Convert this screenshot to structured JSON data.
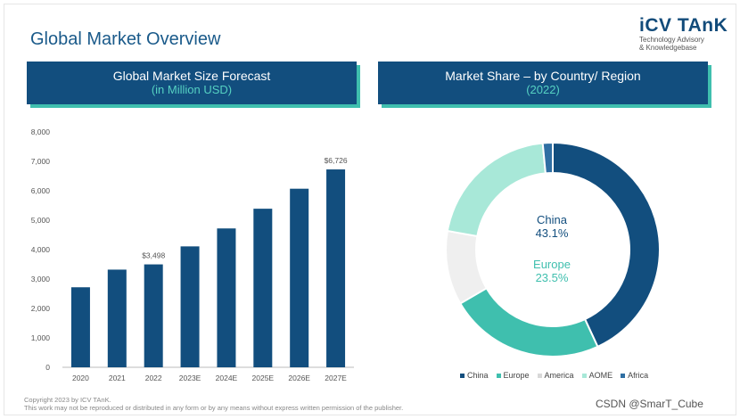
{
  "page": {
    "title": "Global Market Overview",
    "logo": {
      "word": "iCV TAnK",
      "line1": "Technology Advisory",
      "line2": "& Knowledgebase"
    },
    "footer": {
      "copyright": "Copyright 2023 by ICV TAnK.",
      "notice": "This work may not be reproduced or distributed in any form or by any means without express written permission of the publisher."
    },
    "watermark": "CSDN @SmarT_Cube"
  },
  "headers": {
    "left": {
      "line1": "Global Market Size Forecast",
      "line2": "(in Million USD)"
    },
    "right": {
      "line1": "Market Share – by Country/ Region",
      "line2": "(2022)"
    }
  },
  "chart_data": [
    {
      "type": "bar",
      "title": "Global Market Size Forecast (in Million USD)",
      "categories": [
        "2020",
        "2021",
        "2022",
        "2023E",
        "2024E",
        "2025E",
        "2026E",
        "2027E"
      ],
      "values": [
        2720,
        3320,
        3498,
        4110,
        4720,
        5390,
        6070,
        6726
      ],
      "data_labels": {
        "2022": "$3,498",
        "2027E": "$6,726"
      },
      "ylim": [
        0,
        8000
      ],
      "yticks": [
        "0",
        "1,000",
        "2,000",
        "3,000",
        "4,000",
        "5,000",
        "6,000",
        "7,000",
        "8,000"
      ],
      "xlabel": "",
      "ylabel": "",
      "color": "#124e7e"
    },
    {
      "type": "pie",
      "variant": "donut",
      "title": "Market Share – by Country/ Region (2022)",
      "labels": [
        "China",
        "Europe",
        "America",
        "AOME",
        "Africa"
      ],
      "values": [
        43.1,
        23.5,
        11.2,
        20.7,
        1.5
      ],
      "center_labels": [
        {
          "name": "China",
          "value": "43.1%"
        },
        {
          "name": "Europe",
          "value": "23.5%"
        }
      ],
      "colors": [
        "#124e7e",
        "#3fbfae",
        "#efefef",
        "#a8e8d8",
        "#2f6fa3"
      ],
      "legend_position": "bottom"
    }
  ]
}
